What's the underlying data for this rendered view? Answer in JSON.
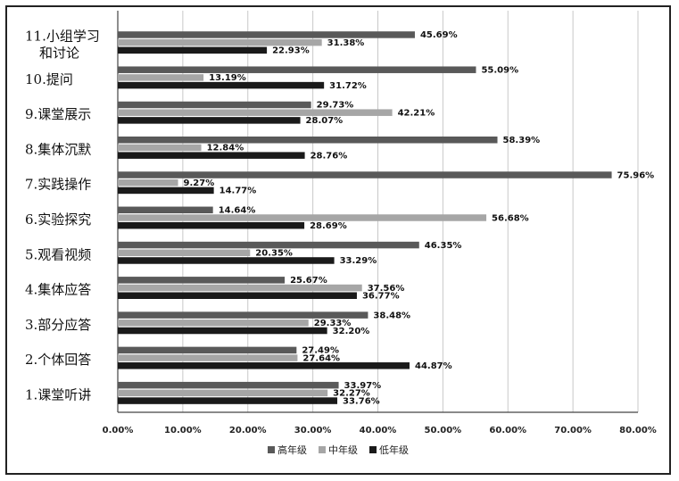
{
  "chart_data": {
    "type": "bar",
    "orientation": "horizontal",
    "categories": [
      [
        "11.小组学习",
        "和讨论"
      ],
      [
        "10.提问"
      ],
      [
        "9.课堂展示"
      ],
      [
        "8.集体沉默"
      ],
      [
        "7.实践操作"
      ],
      [
        "6.实验探究"
      ],
      [
        "5.观看视频"
      ],
      [
        "4.集体应答"
      ],
      [
        "3.部分应答"
      ],
      [
        "2.个体回答"
      ],
      [
        "1.课堂听讲"
      ]
    ],
    "series": [
      {
        "name": "高年级",
        "color": "#595959",
        "values": [
          45.69,
          55.09,
          29.73,
          58.39,
          75.96,
          14.64,
          46.35,
          25.67,
          38.48,
          27.49,
          33.97
        ],
        "labels": [
          "45.69%",
          "55.09%",
          "29.73%",
          "58.39%",
          "75.96%",
          "14.64%",
          "46.35%",
          "25.67%",
          "38.48%",
          "27.49%",
          "33.97%"
        ]
      },
      {
        "name": "中年级",
        "color": "#a6a6a6",
        "values": [
          31.38,
          13.19,
          42.21,
          12.84,
          9.27,
          56.68,
          20.35,
          37.56,
          29.33,
          27.64,
          32.27
        ],
        "labels": [
          "31.38%",
          "13.19%",
          "42.21%",
          "12.84%",
          "9.27%",
          "56.68%",
          "20.35%",
          "37.56%",
          "29.33%",
          "27.64%",
          "32.27%"
        ]
      },
      {
        "name": "低年级",
        "color": "#1a1a1a",
        "values": [
          22.93,
          31.72,
          28.07,
          28.76,
          14.77,
          28.69,
          33.29,
          36.77,
          32.2,
          44.87,
          33.76
        ],
        "labels": [
          "22.93%",
          "31.72%",
          "28.07%",
          "28.76%",
          "14.77%",
          "28.69%",
          "33.29%",
          "36.77%",
          "32.20%",
          "44.87%",
          "33.76%"
        ]
      }
    ],
    "xlim": [
      0,
      80
    ],
    "x_ticks": [
      0,
      10,
      20,
      30,
      40,
      50,
      60,
      70,
      80
    ],
    "x_tick_labels": [
      "0.00%",
      "10.00%",
      "20.00%",
      "30.00%",
      "40.00%",
      "50.00%",
      "60.00%",
      "70.00%",
      "80.00%"
    ],
    "grid": true,
    "legend_position": "bottom",
    "title": "",
    "xlabel": "",
    "ylabel": ""
  }
}
